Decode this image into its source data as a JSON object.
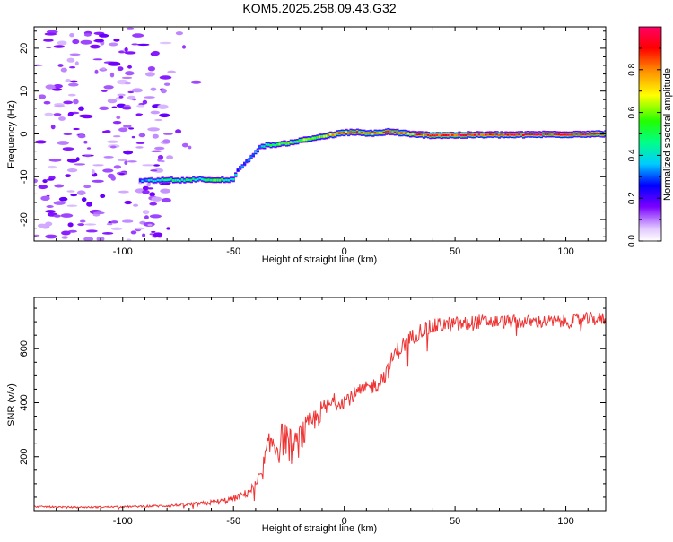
{
  "title": "KOM5.2025.258.09.43.G32",
  "chart_data": [
    {
      "type": "heatmap",
      "title": "KOM5.2025.258.09.43.G32",
      "xlabel": "Height of straight line (km)",
      "ylabel": "Frequency (Hz)",
      "xlim": [
        -140,
        118
      ],
      "ylim": [
        -25,
        25
      ],
      "xticks": [
        -100,
        -50,
        0,
        50,
        100
      ],
      "xtick_labels": [
        "-100",
        "-50",
        "0",
        "50",
        "100"
      ],
      "yticks": [
        -20,
        -10,
        0,
        10,
        20
      ],
      "ytick_labels": [
        "-20",
        "-10",
        "0",
        "10",
        "20"
      ],
      "ridge_x": [
        -92,
        -85,
        -80,
        -75,
        -70,
        -65,
        -60,
        -55,
        -52,
        -50,
        -48,
        -45,
        -42,
        -40,
        -38,
        -35,
        -30,
        -25,
        -20,
        -15,
        -10,
        -5,
        0,
        5,
        10,
        15,
        20,
        25,
        30,
        35,
        40,
        50,
        60,
        70,
        80,
        90,
        100,
        110,
        118
      ],
      "ridge_freq": [
        -10.8,
        -10.9,
        -10.6,
        -10.9,
        -10.7,
        -10.5,
        -10.9,
        -10.7,
        -10.8,
        -10.5,
        -8.5,
        -7.0,
        -5.5,
        -4.2,
        -3.2,
        -2.6,
        -2.5,
        -2.1,
        -1.6,
        -1.1,
        -0.6,
        -0.2,
        0.3,
        0.4,
        0.1,
        0.2,
        0.5,
        0.3,
        -0.1,
        -0.2,
        -0.3,
        -0.3,
        -0.2,
        -0.2,
        -0.2,
        -0.1,
        -0.1,
        0.0,
        0.0
      ],
      "ridge_amplitude": [
        0.3,
        0.45,
        0.45,
        0.5,
        0.5,
        0.45,
        0.55,
        0.5,
        0.45,
        0.4,
        0.3,
        0.3,
        0.32,
        0.35,
        0.35,
        0.45,
        0.55,
        0.6,
        0.6,
        0.65,
        0.7,
        0.75,
        0.8,
        0.85,
        0.8,
        0.8,
        0.85,
        0.85,
        0.8,
        0.85,
        0.9,
        0.9,
        0.92,
        0.95,
        0.95,
        0.95,
        0.95,
        0.95,
        0.95
      ],
      "colorbar": {
        "label": "Normalized spectral amplitude",
        "range": [
          0.0,
          1.0
        ],
        "ticks": [
          0.0,
          0.2,
          0.4,
          0.6,
          0.8
        ],
        "tick_labels": [
          "0.0",
          "0.2",
          "0.4",
          "0.6",
          "0.8"
        ]
      }
    },
    {
      "type": "line",
      "xlabel": "Height of straight line (km)",
      "ylabel": "SNR (v/v)",
      "xlim": [
        -140,
        118
      ],
      "ylim": [
        0,
        790
      ],
      "xticks": [
        -100,
        -50,
        0,
        50,
        100
      ],
      "xtick_labels": [
        "-100",
        "-50",
        "0",
        "50",
        "100"
      ],
      "yticks": [
        200,
        400,
        600
      ],
      "ytick_labels": [
        "200",
        "400",
        "600"
      ],
      "series": [
        {
          "name": "SNR",
          "color": "#ee3333",
          "x": [
            -140,
            -120,
            -100,
            -80,
            -65,
            -55,
            -50,
            -45,
            -40,
            -37,
            -35,
            -32,
            -30,
            -27,
            -25,
            -22,
            -20,
            -15,
            -10,
            -5,
            0,
            5,
            10,
            15,
            20,
            22,
            25,
            30,
            35,
            40,
            45,
            50,
            55,
            60,
            70,
            80,
            90,
            100,
            110,
            118
          ],
          "y": [
            15,
            12,
            14,
            18,
            25,
            35,
            45,
            60,
            90,
            140,
            220,
            260,
            230,
            280,
            240,
            230,
            270,
            320,
            370,
            400,
            410,
            430,
            450,
            470,
            520,
            570,
            600,
            640,
            670,
            680,
            690,
            690,
            690,
            700,
            700,
            700,
            700,
            700,
            710,
            710
          ],
          "noise": [
            3,
            3,
            3,
            5,
            8,
            12,
            12,
            15,
            25,
            40,
            50,
            60,
            65,
            70,
            70,
            65,
            60,
            50,
            40,
            35,
            30,
            30,
            30,
            30,
            30,
            35,
            35,
            30,
            30,
            30,
            30,
            30,
            30,
            28,
            25,
            25,
            25,
            25,
            25,
            25
          ]
        }
      ]
    }
  ]
}
